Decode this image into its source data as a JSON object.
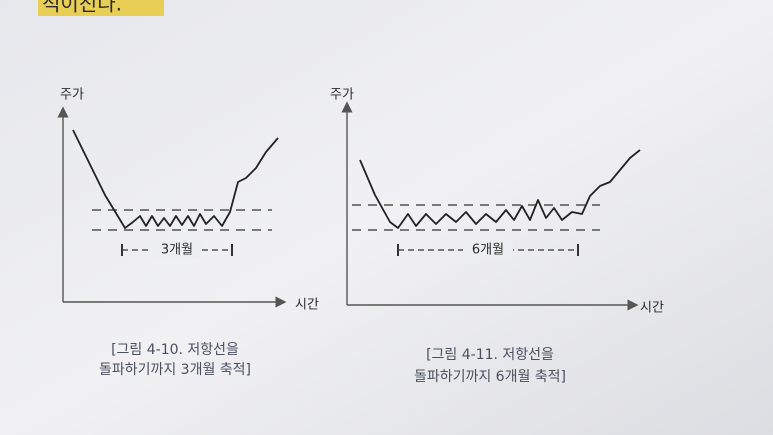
{
  "header_text": "적이진다.",
  "figures": [
    {
      "y_label": "주가",
      "x_label": "시간",
      "span_label": "3개월",
      "caption": [
        "[그림 4-10. 저항선을",
        "돌파하기까지 3개월 축적]"
      ]
    },
    {
      "y_label": "주가",
      "x_label": "시간",
      "span_label": "6개월",
      "caption": [
        "[그림 4-11. 저항선을",
        "돌파하기까지 6개월 축적]"
      ]
    }
  ]
}
